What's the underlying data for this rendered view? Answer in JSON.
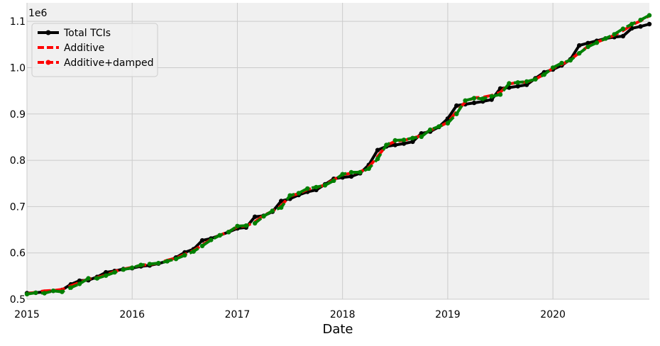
{
  "chart_data": {
    "type": "line",
    "title": "",
    "xlabel": "Date",
    "ylabel": "",
    "y_offset_label": "1e6",
    "xlim": [
      "2015-01-01",
      "2020-12-01"
    ],
    "ylim": [
      0.5,
      1.14
    ],
    "x_ticks": [
      "2015",
      "2016",
      "2017",
      "2018",
      "2019",
      "2020"
    ],
    "y_ticks": [
      "0.5",
      "0.6",
      "0.7",
      "0.8",
      "0.9",
      "1.0",
      "1.1"
    ],
    "grid": true,
    "legend_position": "top-left",
    "style": {
      "background": "#f0f0f0",
      "grid_color": "#cbcbcb"
    },
    "series": [
      {
        "name": "Total TCIs",
        "color": "#000000",
        "line_style": "solid",
        "marker": "circle",
        "points": [
          [
            "2015-01",
            0.513
          ],
          [
            "2015-02",
            0.514
          ],
          [
            "2015-03",
            0.516
          ],
          [
            "2015-04",
            0.518
          ],
          [
            "2015-05",
            0.52
          ],
          [
            "2015-06",
            0.532
          ],
          [
            "2015-07",
            0.54
          ],
          [
            "2015-08",
            0.541
          ],
          [
            "2015-09",
            0.548
          ],
          [
            "2015-10",
            0.558
          ],
          [
            "2015-11",
            0.561
          ],
          [
            "2015-12",
            0.565
          ],
          [
            "2016-01",
            0.567
          ],
          [
            "2016-02",
            0.571
          ],
          [
            "2016-03",
            0.573
          ],
          [
            "2016-04",
            0.577
          ],
          [
            "2016-05",
            0.582
          ],
          [
            "2016-06",
            0.59
          ],
          [
            "2016-07",
            0.601
          ],
          [
            "2016-08",
            0.608
          ],
          [
            "2016-09",
            0.627
          ],
          [
            "2016-10",
            0.631
          ],
          [
            "2016-11",
            0.638
          ],
          [
            "2016-12",
            0.645
          ],
          [
            "2017-01",
            0.653
          ],
          [
            "2017-02",
            0.655
          ],
          [
            "2017-03",
            0.678
          ],
          [
            "2017-04",
            0.68
          ],
          [
            "2017-05",
            0.689
          ],
          [
            "2017-06",
            0.712
          ],
          [
            "2017-07",
            0.717
          ],
          [
            "2017-08",
            0.725
          ],
          [
            "2017-09",
            0.732
          ],
          [
            "2017-10",
            0.736
          ],
          [
            "2017-11",
            0.748
          ],
          [
            "2017-12",
            0.76
          ],
          [
            "2018-01",
            0.763
          ],
          [
            "2018-02",
            0.765
          ],
          [
            "2018-03",
            0.772
          ],
          [
            "2018-04",
            0.79
          ],
          [
            "2018-05",
            0.822
          ],
          [
            "2018-06",
            0.83
          ],
          [
            "2018-07",
            0.833
          ],
          [
            "2018-08",
            0.836
          ],
          [
            "2018-09",
            0.84
          ],
          [
            "2018-10",
            0.858
          ],
          [
            "2018-11",
            0.862
          ],
          [
            "2018-12",
            0.872
          ],
          [
            "2019-01",
            0.89
          ],
          [
            "2019-02",
            0.918
          ],
          [
            "2019-03",
            0.921
          ],
          [
            "2019-04",
            0.924
          ],
          [
            "2019-05",
            0.927
          ],
          [
            "2019-06",
            0.931
          ],
          [
            "2019-07",
            0.955
          ],
          [
            "2019-08",
            0.957
          ],
          [
            "2019-09",
            0.96
          ],
          [
            "2019-10",
            0.963
          ],
          [
            "2019-11",
            0.977
          ],
          [
            "2019-12",
            0.99
          ],
          [
            "2020-01",
            0.996
          ],
          [
            "2020-02",
            1.005
          ],
          [
            "2020-03",
            1.018
          ],
          [
            "2020-04",
            1.048
          ],
          [
            "2020-05",
            1.053
          ],
          [
            "2020-06",
            1.058
          ],
          [
            "2020-07",
            1.063
          ],
          [
            "2020-08",
            1.066
          ],
          [
            "2020-09",
            1.068
          ],
          [
            "2020-10",
            1.085
          ],
          [
            "2020-11",
            1.089
          ],
          [
            "2020-12",
            1.094
          ]
        ]
      },
      {
        "name": "Additive",
        "color": "#ff0000",
        "line_style": "dashed",
        "marker": "none",
        "points": [
          [
            "2015-01",
            0.512
          ],
          [
            "2015-02",
            0.515
          ],
          [
            "2015-03",
            0.518
          ],
          [
            "2015-04",
            0.519
          ],
          [
            "2015-05",
            0.521
          ],
          [
            "2015-06",
            0.529
          ],
          [
            "2015-07",
            0.536
          ],
          [
            "2015-08",
            0.544
          ],
          [
            "2015-09",
            0.547
          ],
          [
            "2015-10",
            0.552
          ],
          [
            "2015-11",
            0.56
          ],
          [
            "2015-12",
            0.565
          ],
          [
            "2016-01",
            0.569
          ],
          [
            "2016-02",
            0.573
          ],
          [
            "2016-03",
            0.575
          ],
          [
            "2016-04",
            0.578
          ],
          [
            "2016-05",
            0.584
          ],
          [
            "2016-06",
            0.589
          ],
          [
            "2016-07",
            0.597
          ],
          [
            "2016-08",
            0.605
          ],
          [
            "2016-09",
            0.617
          ],
          [
            "2016-10",
            0.629
          ],
          [
            "2016-11",
            0.638
          ],
          [
            "2016-12",
            0.646
          ],
          [
            "2017-01",
            0.656
          ],
          [
            "2017-02",
            0.658
          ],
          [
            "2017-03",
            0.667
          ],
          [
            "2017-04",
            0.681
          ],
          [
            "2017-05",
            0.69
          ],
          [
            "2017-06",
            0.702
          ],
          [
            "2017-07",
            0.723
          ],
          [
            "2017-08",
            0.728
          ],
          [
            "2017-09",
            0.737
          ],
          [
            "2017-10",
            0.741
          ],
          [
            "2017-11",
            0.747
          ],
          [
            "2017-12",
            0.758
          ],
          [
            "2018-01",
            0.769
          ],
          [
            "2018-02",
            0.772
          ],
          [
            "2018-03",
            0.775
          ],
          [
            "2018-04",
            0.785
          ],
          [
            "2018-05",
            0.808
          ],
          [
            "2018-06",
            0.832
          ],
          [
            "2018-07",
            0.841
          ],
          [
            "2018-08",
            0.843
          ],
          [
            "2018-09",
            0.848
          ],
          [
            "2018-10",
            0.853
          ],
          [
            "2018-11",
            0.865
          ],
          [
            "2018-12",
            0.872
          ],
          [
            "2019-01",
            0.882
          ],
          [
            "2019-02",
            0.905
          ],
          [
            "2019-03",
            0.926
          ],
          [
            "2019-04",
            0.935
          ],
          [
            "2019-05",
            0.936
          ],
          [
            "2019-06",
            0.94
          ],
          [
            "2019-07",
            0.947
          ],
          [
            "2019-08",
            0.965
          ],
          [
            "2019-09",
            0.968
          ],
          [
            "2019-10",
            0.969
          ],
          [
            "2019-11",
            0.975
          ],
          [
            "2019-12",
            0.986
          ],
          [
            "2020-01",
            0.999
          ],
          [
            "2020-02",
            1.007
          ],
          [
            "2020-03",
            1.017
          ],
          [
            "2020-04",
            1.032
          ],
          [
            "2020-05",
            1.046
          ],
          [
            "2020-06",
            1.055
          ],
          [
            "2020-07",
            1.062
          ],
          [
            "2020-08",
            1.07
          ],
          [
            "2020-09",
            1.08
          ],
          [
            "2020-10",
            1.092
          ],
          [
            "2020-11",
            1.101
          ],
          [
            "2020-12",
            1.112
          ]
        ]
      },
      {
        "name": "Additive+damped",
        "color": "#ff0000",
        "line_style": "dashed",
        "marker": "circle",
        "points": []
      },
      {
        "name": "",
        "color": "#008000",
        "line_style": "dashed",
        "marker": "circle",
        "points": [
          [
            "2015-01",
            0.511
          ],
          [
            "2015-02",
            0.514
          ],
          [
            "2015-03",
            0.513
          ],
          [
            "2015-04",
            0.518
          ],
          [
            "2015-05",
            0.516
          ],
          [
            "2015-06",
            0.525
          ],
          [
            "2015-07",
            0.533
          ],
          [
            "2015-08",
            0.545
          ],
          [
            "2015-09",
            0.545
          ],
          [
            "2015-10",
            0.551
          ],
          [
            "2015-11",
            0.558
          ],
          [
            "2015-12",
            0.564
          ],
          [
            "2016-01",
            0.568
          ],
          [
            "2016-02",
            0.574
          ],
          [
            "2016-03",
            0.576
          ],
          [
            "2016-04",
            0.578
          ],
          [
            "2016-05",
            0.582
          ],
          [
            "2016-06",
            0.587
          ],
          [
            "2016-07",
            0.595
          ],
          [
            "2016-08",
            0.603
          ],
          [
            "2016-09",
            0.615
          ],
          [
            "2016-10",
            0.628
          ],
          [
            "2016-11",
            0.638
          ],
          [
            "2016-12",
            0.645
          ],
          [
            "2017-01",
            0.658
          ],
          [
            "2017-02",
            0.659
          ],
          [
            "2017-03",
            0.664
          ],
          [
            "2017-04",
            0.679
          ],
          [
            "2017-05",
            0.691
          ],
          [
            "2017-06",
            0.698
          ],
          [
            "2017-07",
            0.724
          ],
          [
            "2017-08",
            0.729
          ],
          [
            "2017-09",
            0.739
          ],
          [
            "2017-10",
            0.742
          ],
          [
            "2017-11",
            0.746
          ],
          [
            "2017-12",
            0.756
          ],
          [
            "2018-01",
            0.77
          ],
          [
            "2018-02",
            0.774
          ],
          [
            "2018-03",
            0.774
          ],
          [
            "2018-04",
            0.782
          ],
          [
            "2018-05",
            0.803
          ],
          [
            "2018-06",
            0.833
          ],
          [
            "2018-07",
            0.843
          ],
          [
            "2018-08",
            0.844
          ],
          [
            "2018-09",
            0.848
          ],
          [
            "2018-10",
            0.851
          ],
          [
            "2018-11",
            0.866
          ],
          [
            "2018-12",
            0.873
          ],
          [
            "2019-01",
            0.88
          ],
          [
            "2019-02",
            0.9
          ],
          [
            "2019-03",
            0.929
          ],
          [
            "2019-04",
            0.934
          ],
          [
            "2019-05",
            0.933
          ],
          [
            "2019-06",
            0.938
          ],
          [
            "2019-07",
            0.942
          ],
          [
            "2019-08",
            0.966
          ],
          [
            "2019-09",
            0.968
          ],
          [
            "2019-10",
            0.97
          ],
          [
            "2019-11",
            0.975
          ],
          [
            "2019-12",
            0.985
          ],
          [
            "2020-01",
            1.0
          ],
          [
            "2020-02",
            1.01
          ],
          [
            "2020-03",
            1.016
          ],
          [
            "2020-04",
            1.031
          ],
          [
            "2020-05",
            1.045
          ],
          [
            "2020-06",
            1.054
          ],
          [
            "2020-07",
            1.063
          ],
          [
            "2020-08",
            1.072
          ],
          [
            "2020-09",
            1.084
          ],
          [
            "2020-10",
            1.094
          ],
          [
            "2020-11",
            1.103
          ],
          [
            "2020-12",
            1.113
          ]
        ]
      }
    ]
  }
}
